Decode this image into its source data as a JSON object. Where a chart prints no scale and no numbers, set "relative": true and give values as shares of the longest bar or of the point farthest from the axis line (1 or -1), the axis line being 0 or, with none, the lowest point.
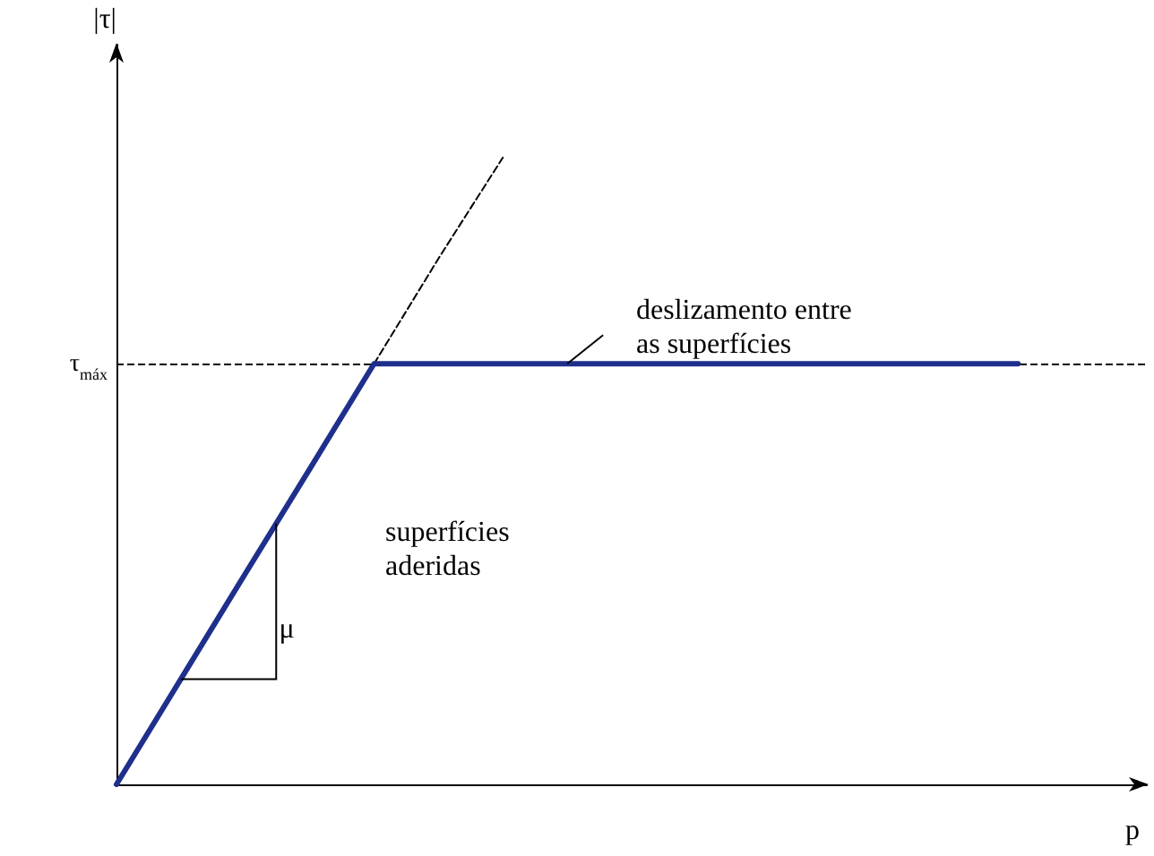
{
  "chart_data": {
    "type": "line",
    "relative": true,
    "xlabel": "p",
    "ylabel": "|τ|",
    "grid": false,
    "marker": "none",
    "categories": [
      null,
      null,
      null,
      null,
      null,
      null,
      null,
      null,
      null,
      null,
      null,
      null,
      null,
      null,
      null,
      null,
      null
    ],
    "series": [
      {
        "color": "#1f2f8c",
        "values": [
          0,
          0.168,
          0.336,
          0.503,
          0.671,
          0.671,
          0.671,
          0.671,
          0.671,
          0.671,
          0.671,
          0.671,
          0.671,
          0.671,
          0.671,
          null,
          null
        ],
        "line_style": "solid"
      },
      {
        "color": "#000000",
        "values": [
          null,
          null,
          null,
          null,
          0.671,
          0.839,
          1,
          null,
          null,
          null,
          null,
          null,
          null,
          null,
          null,
          null,
          null
        ],
        "line_style": "dashed"
      }
    ],
    "ref_lines": [
      {
        "axis": "y",
        "value": 0.671,
        "label": "τ$_{máx}$",
        "color": "#000000",
        "line_style": "dashed"
      }
    ],
    "annotations": [
      "deslizamento entre\nas superfícies",
      "μ",
      "superfícies\naderidas"
    ]
  }
}
